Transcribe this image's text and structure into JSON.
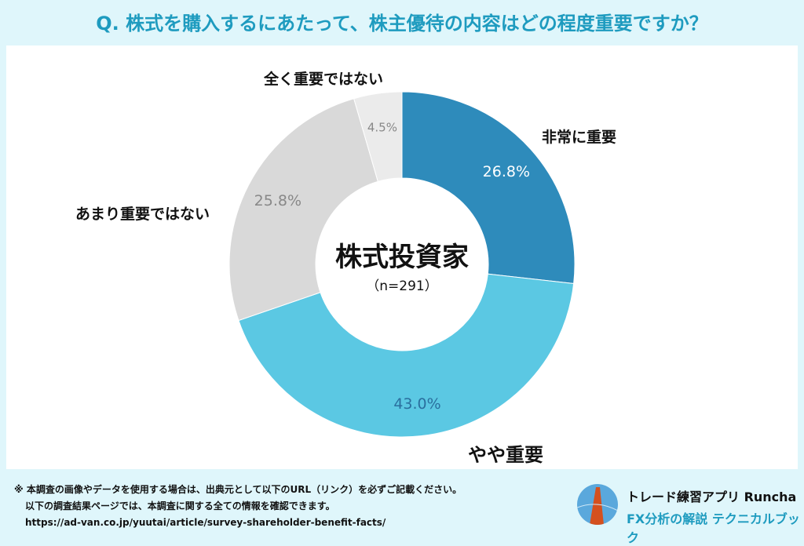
{
  "title": "Q. 株式を購入するにあたって、株主優待の内容はどの程度重要ですか？",
  "chart_data": {
    "type": "pie",
    "donut": true,
    "center_title": "株式投資家",
    "center_subtitle": "（n=291）",
    "categories": [
      "非常に重要",
      "やや重要",
      "あまり重要ではない",
      "全く重要ではない"
    ],
    "values": [
      26.8,
      43.0,
      25.8,
      4.5
    ],
    "value_labels": [
      "26.8%",
      "43.0%",
      "25.8%",
      "4.5%"
    ],
    "colors": [
      "#2e8bbb",
      "#5bc8e3",
      "#d9d9d9",
      "#ebebeb"
    ],
    "label_colors": [
      "#ffffff",
      "#2a6f9e",
      "#888888",
      "#888888"
    ]
  },
  "footer": {
    "line1": "※ 本調査の画像やデータを使用する場合は、出典元として以下のURL（リンク）を必ずご記載ください。",
    "line2": "以下の調査結果ページでは、本調査に関する全ての情報を確認できます。",
    "url": "https://ad-van.co.jp/yuutai/article/survey-shareholder-benefit-facts/"
  },
  "brand": {
    "name": "トレード練習アプリ Runcha",
    "tagline": "FX分析の解説 テクニカルブック"
  }
}
